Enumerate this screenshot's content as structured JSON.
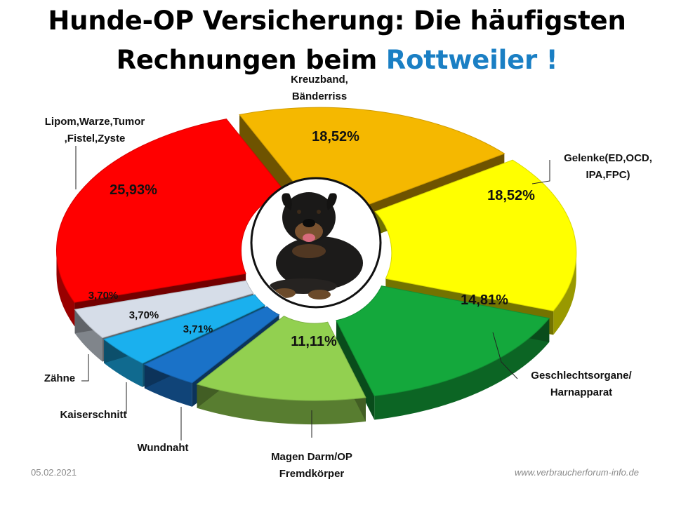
{
  "title": {
    "line1": "Hunde-OP Versicherung: Die häufigsten",
    "line2": "Rechnungen beim",
    "accent": "Rottweiler !"
  },
  "colors": {
    "accent": "#1a7fc4"
  },
  "image": {
    "icon": "rottweiler-dog-photo"
  },
  "footer": {
    "date": "05.02.2021",
    "website": "www.verbraucherforum-info.de"
  },
  "chart_data": {
    "type": "pie",
    "style": "3d-exploded-donut",
    "slices": [
      {
        "label": [
          "Kreuzband,",
          "Bänderriss"
        ],
        "value": 18.52,
        "value_label": "18,52%",
        "color": "#f5b800"
      },
      {
        "label": [
          "Gelenke(ED,OCD,",
          "IPA,FPC)"
        ],
        "value": 18.52,
        "value_label": "18,52%",
        "color": "#ffff00"
      },
      {
        "label": [
          "Geschlechtsorgane/",
          "Harnapparat"
        ],
        "value": 14.81,
        "value_label": "14,81%",
        "color": "#14a83c"
      },
      {
        "label": [
          "Magen Darm/OP",
          "Fremdkörper"
        ],
        "value": 11.11,
        "value_label": "11,11%",
        "color": "#92d050"
      },
      {
        "label": [
          "Wundnaht"
        ],
        "value": 3.71,
        "value_label": "3,71%",
        "color": "#1a72c8"
      },
      {
        "label": [
          "Kaiserschnitt"
        ],
        "value": 3.7,
        "value_label": "3,70%",
        "color": "#1ab0ee"
      },
      {
        "label": [
          "Zähne"
        ],
        "value": 3.7,
        "value_label": "3,70%",
        "color": "#d6dde8"
      },
      {
        "label": [
          "Lipom,Warze,Tumor",
          ",Fistel,Zyste"
        ],
        "value": 25.93,
        "value_label": "25,93%",
        "color": "#ff0000"
      }
    ]
  }
}
